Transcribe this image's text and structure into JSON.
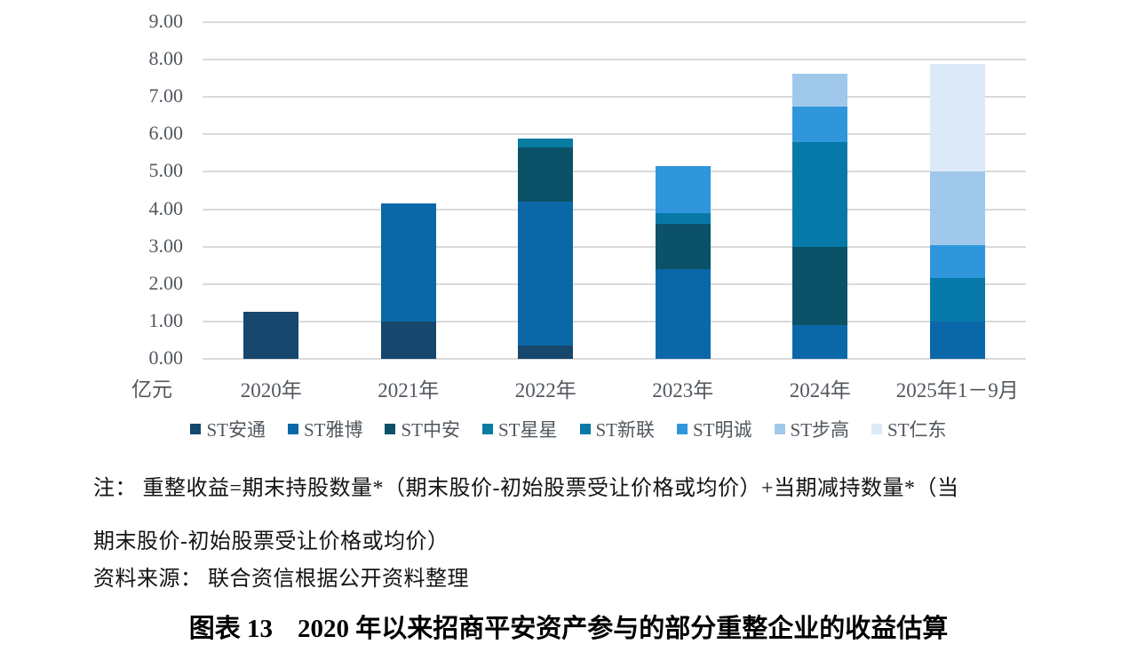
{
  "chart_data": {
    "type": "bar",
    "stacked": true,
    "title": "2020年以来招商平安资产参与的部分重整企业的收益估算",
    "unit_label": "亿元",
    "categories": [
      "2020年",
      "2021年",
      "2022年",
      "2023年",
      "2024年",
      "2025年1－9月"
    ],
    "series": [
      {
        "name": "ST安通",
        "color": "#17476C",
        "values": [
          1.25,
          1.0,
          0.35,
          0,
          0,
          0
        ]
      },
      {
        "name": "ST雅博",
        "color": "#0B68A8",
        "values": [
          0,
          3.15,
          3.85,
          2.4,
          0.9,
          1.0
        ]
      },
      {
        "name": "ST中安",
        "color": "#0B5168",
        "values": [
          0,
          0,
          1.45,
          1.2,
          2.1,
          0
        ]
      },
      {
        "name": "ST星星",
        "color": "#0A7CA2",
        "values": [
          0,
          0,
          0.25,
          0,
          0,
          0
        ]
      },
      {
        "name": "ST新联",
        "color": "#0679A8",
        "values": [
          0,
          0,
          0,
          0.3,
          2.8,
          1.15
        ]
      },
      {
        "name": "ST明诚",
        "color": "#2F96DC",
        "values": [
          0,
          0,
          0,
          1.25,
          0.95,
          0.9
        ]
      },
      {
        "name": "ST步高",
        "color": "#A0C8EA",
        "values": [
          0,
          0,
          0,
          0,
          0.88,
          1.95
        ]
      },
      {
        "name": "ST仁东",
        "color": "#DCEAF7",
        "values": [
          0,
          0,
          0,
          0,
          0,
          2.88
        ]
      }
    ],
    "ylim": [
      0,
      9
    ],
    "ytick_step": 1,
    "ytick_decimals": 2,
    "grid": true,
    "legend_position": "bottom"
  },
  "notes": {
    "line1": "注： 重整收益=期末持股数量*（期末股价-初始股票受让价格或均价）+当期减持数量*（当",
    "line2": "期末股价-初始股票受让价格或均价）",
    "source": "资料来源： 联合资信根据公开资料整理"
  },
  "caption": {
    "label": "图表 13",
    "title": "2020 年以来招商平安资产参与的部分重整企业的收益估算"
  }
}
